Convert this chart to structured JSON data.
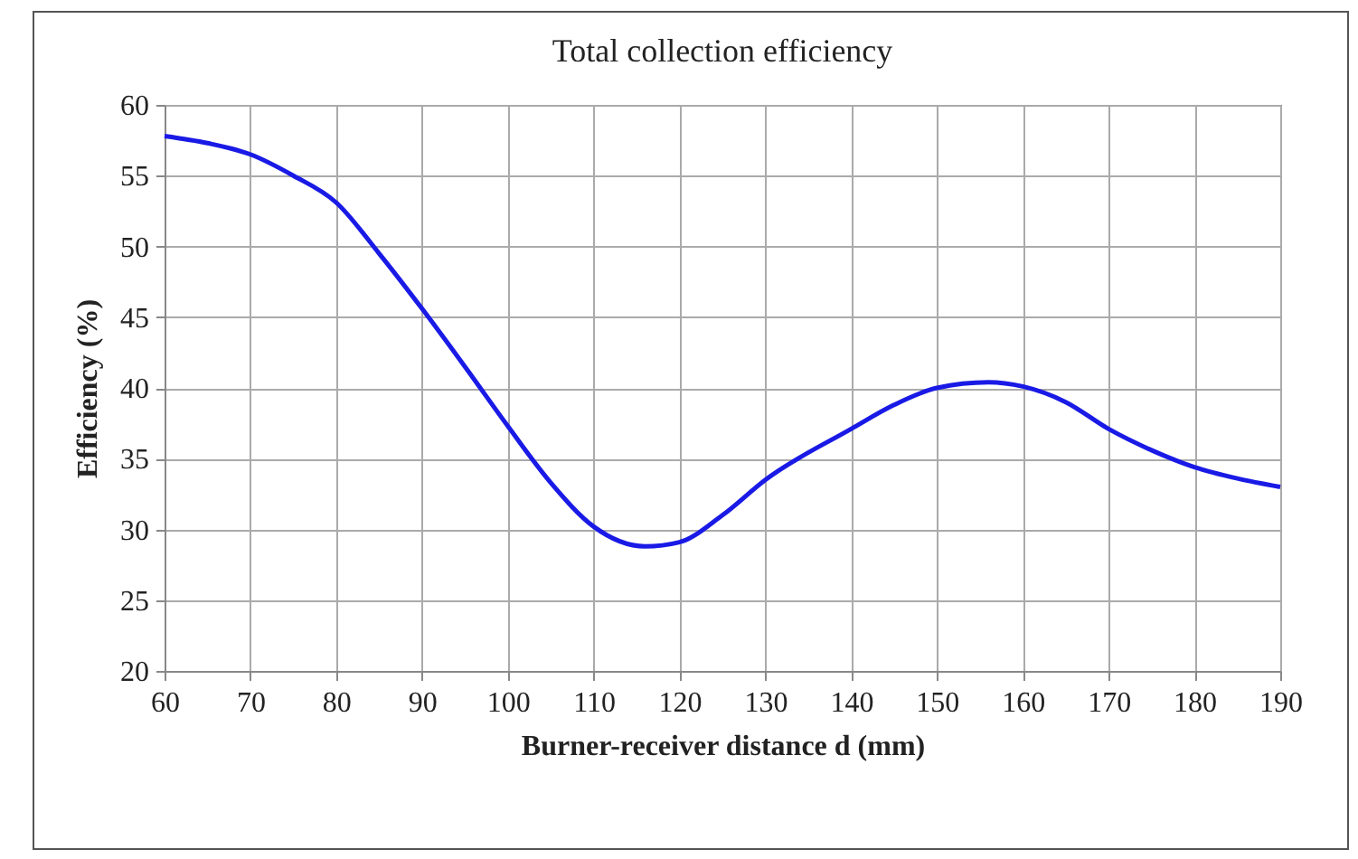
{
  "chart_data": {
    "type": "line",
    "title": "Total collection efficiency",
    "xlabel": "Burner-receiver distance d (mm)",
    "ylabel": "Efficiency (%)",
    "x": [
      60,
      65,
      70,
      75,
      80,
      85,
      90,
      95,
      100,
      105,
      110,
      116,
      120,
      125,
      130,
      140,
      145,
      150,
      156,
      160,
      165,
      170,
      175,
      180,
      185,
      190
    ],
    "series": [
      {
        "color": "#1a1ae6",
        "values": [
          57.8,
          57.3,
          56.5,
          55,
          53.1,
          49.5,
          45.6,
          41.5,
          37.3,
          33.3,
          30.2,
          28.8,
          29.1,
          31,
          33.5,
          37.1,
          38.8,
          40,
          40.4,
          40.1,
          39,
          37.1,
          35.6,
          34.4,
          33.6,
          33
        ]
      }
    ],
    "xlim": [
      60,
      190
    ],
    "xticks": [
      60,
      70,
      80,
      90,
      100,
      110,
      120,
      130,
      140,
      150,
      160,
      170,
      180,
      190
    ],
    "ylim": [
      20,
      60
    ],
    "yticks": [
      20,
      25,
      30,
      35,
      40,
      45,
      50,
      55,
      60
    ],
    "grid": true,
    "marker": "none",
    "line_style": "solid"
  }
}
